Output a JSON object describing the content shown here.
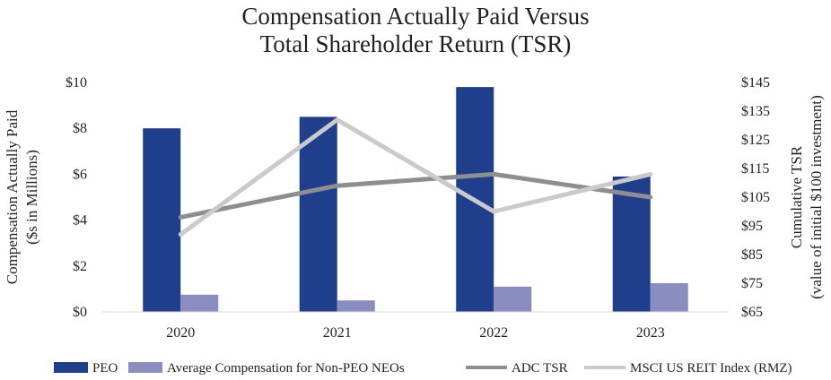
{
  "chart_data": {
    "type": "bar",
    "title_lines": [
      "Compensation Actually Paid Versus",
      "Total Shareholder Return (TSR)"
    ],
    "categories": [
      "2020",
      "2021",
      "2022",
      "2023"
    ],
    "left_axis": {
      "label_lines": [
        "Compensation Actually Paid",
        "($s in Millions)"
      ],
      "ylim": [
        0,
        10
      ],
      "ticks": [
        0,
        2,
        4,
        6,
        8,
        10
      ],
      "tick_labels": [
        "$0",
        "$2",
        "$4",
        "$6",
        "$8",
        "$10"
      ]
    },
    "right_axis": {
      "label_lines": [
        "Cumulative TSR",
        "(value of initial $100 investment)"
      ],
      "ylim": [
        65,
        145
      ],
      "ticks": [
        65,
        75,
        85,
        95,
        105,
        115,
        125,
        135,
        145
      ],
      "tick_labels": [
        "$65",
        "$75",
        "$85",
        "$95",
        "$105",
        "$115",
        "$125",
        "$135",
        "$145"
      ]
    },
    "bar_series": [
      {
        "name": "PEO",
        "color": "#1f3e8c",
        "values": [
          8.0,
          8.5,
          9.8,
          5.9
        ]
      },
      {
        "name": "Average Compensation for Non-PEO NEOs",
        "color": "#8a8dbf",
        "values": [
          0.75,
          0.5,
          1.1,
          1.25
        ]
      }
    ],
    "line_series": [
      {
        "name": "ADC TSR",
        "color": "#8e8e8e",
        "values": [
          98,
          109,
          113,
          105
        ]
      },
      {
        "name": "MSCI US REIT Index (RMZ)",
        "color": "#cacaca",
        "values": [
          92,
          132,
          100,
          113
        ]
      }
    ],
    "grid": false,
    "legend_position": "bottom"
  }
}
